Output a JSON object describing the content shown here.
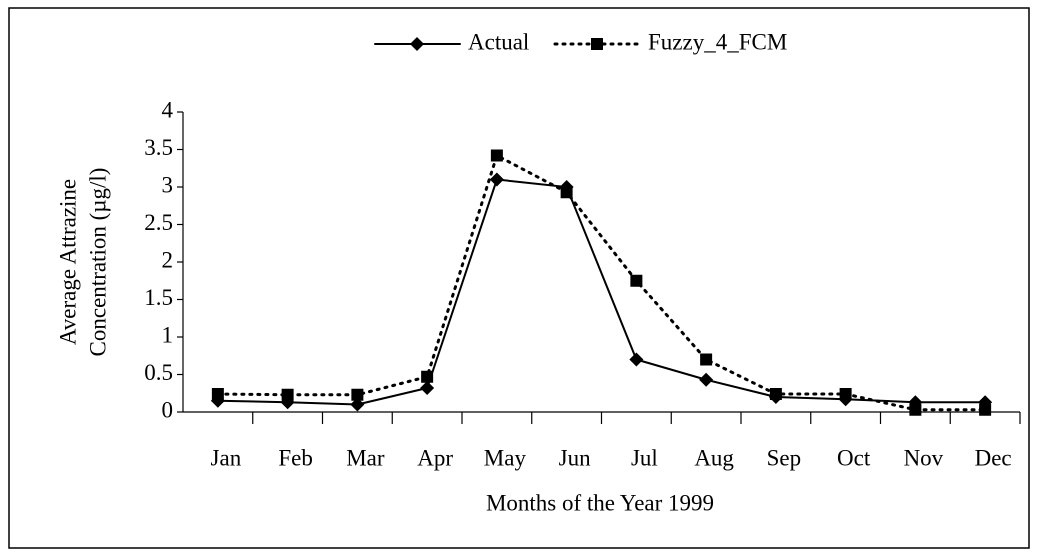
{
  "chart_data": {
    "type": "line",
    "categories": [
      "Jan",
      "Feb",
      "Mar",
      "Apr",
      "May",
      "Jun",
      "Jul",
      "Aug",
      "Sep",
      "Oct",
      "Nov",
      "Dec"
    ],
    "series": [
      {
        "name": "Actual",
        "color": "#000000",
        "marker": "diamond",
        "line_style": "solid",
        "values": [
          0.15,
          0.13,
          0.1,
          0.32,
          3.1,
          3.0,
          0.7,
          0.43,
          0.2,
          0.17,
          0.13,
          0.13
        ]
      },
      {
        "name": "Fuzzy_4_FCM",
        "color": "#000000",
        "marker": "square",
        "line_style": "dotted",
        "values": [
          0.24,
          0.23,
          0.23,
          0.47,
          3.42,
          2.93,
          1.75,
          0.7,
          0.24,
          0.24,
          0.03,
          0.03
        ]
      }
    ],
    "ylim": [
      0,
      4
    ],
    "yticks": [
      0,
      0.5,
      1,
      1.5,
      2,
      2.5,
      3,
      3.5,
      4
    ],
    "y_label": [
      "Average Attrazine",
      "Concentration (µg/l)"
    ],
    "x_label": "Months of the Year 1999",
    "legend": "top"
  }
}
